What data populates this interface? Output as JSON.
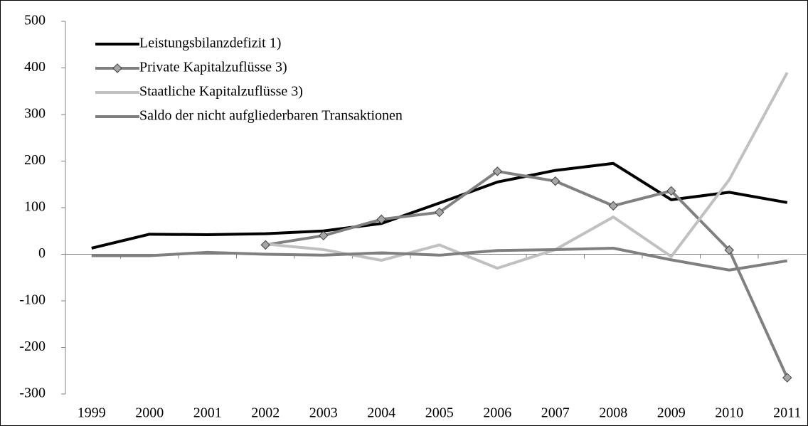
{
  "chart_data": {
    "type": "line",
    "categories": [
      "1999",
      "2000",
      "2001",
      "2002",
      "2003",
      "2004",
      "2005",
      "2006",
      "2007",
      "2008",
      "2009",
      "2010",
      "2011"
    ],
    "series": [
      {
        "name": "Leistungsbilanzdefizit 1)",
        "color": "#000000",
        "values": [
          13,
          43,
          42,
          44,
          50,
          66,
          110,
          155,
          180,
          195,
          117,
          133,
          111
        ]
      },
      {
        "name": "Private Kapitalzuflüsse 3)",
        "color": "#808080",
        "marker": "diamond",
        "values": [
          null,
          null,
          null,
          20,
          40,
          75,
          90,
          178,
          157,
          104,
          136,
          9,
          -265
        ]
      },
      {
        "name": "Staatliche Kapitalzuflüsse 3)",
        "color": "#c0c0c0",
        "values": [
          null,
          null,
          null,
          22,
          10,
          -13,
          20,
          -30,
          10,
          80,
          -5,
          160,
          390
        ]
      },
      {
        "name": "Saldo der nicht aufgliederbaren Transaktionen",
        "color": "#7f7f7f",
        "values": [
          -3,
          -3,
          4,
          0,
          -2,
          3,
          -2,
          8,
          10,
          13,
          -12,
          -34,
          -14
        ]
      }
    ],
    "ylim": [
      -300,
      500
    ],
    "yticks": [
      -300,
      -200,
      -100,
      0,
      100,
      200,
      300,
      400,
      500
    ],
    "legend": "upper left"
  }
}
